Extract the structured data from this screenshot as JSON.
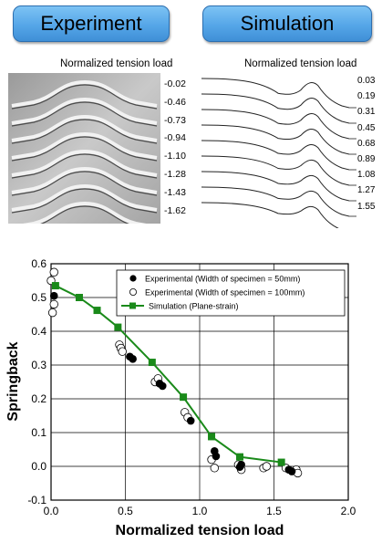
{
  "header": {
    "experiment_label": "Experiment",
    "simulation_label": "Simulation"
  },
  "experiment_panel": {
    "caption": "Normalized tension load",
    "load_labels": [
      "0.02",
      "0.46",
      "0.73",
      "0.94",
      "1.10",
      "1.28",
      "1.43",
      "1.62"
    ]
  },
  "simulation_panel": {
    "caption": "Normalized tension load",
    "load_labels": [
      "0.03",
      "0.19",
      "0.31",
      "0.45",
      "0.68",
      "0.89",
      "1.08",
      "1.27",
      "1.55"
    ]
  },
  "colors": {
    "header_fill": "#55a6e8",
    "simulation_series": "#1a8a1a",
    "photo_background": "#b8b8b8"
  },
  "chart_data": {
    "type": "scatter",
    "xlabel": "Normalized tension load",
    "ylabel": "Springback",
    "xlim": [
      0.0,
      2.0
    ],
    "ylim": [
      -0.1,
      0.6
    ],
    "xticks": [
      "0.0",
      "0.5",
      "1.0",
      "1.5",
      "2.0"
    ],
    "yticks": [
      "-0.1",
      "0.0",
      "0.1",
      "0.2",
      "0.3",
      "0.4",
      "0.5",
      "0.6"
    ],
    "grid": true,
    "legend_position": "top-right",
    "series": [
      {
        "name": "Experimental (Width of specimen = 50mm)",
        "marker": "filled-circle",
        "points": [
          [
            0.02,
            0.505
          ],
          [
            0.53,
            0.325
          ],
          [
            0.55,
            0.318
          ],
          [
            0.73,
            0.245
          ],
          [
            0.75,
            0.238
          ],
          [
            0.94,
            0.135
          ],
          [
            1.1,
            0.045
          ],
          [
            1.11,
            0.03
          ],
          [
            1.28,
            0.005
          ],
          [
            1.27,
            -0.002
          ],
          [
            1.6,
            -0.01
          ],
          [
            1.62,
            -0.015
          ]
        ]
      },
      {
        "name": "Experimental (Width of specimen = 100mm)",
        "marker": "open-circle",
        "points": [
          [
            0.02,
            0.575
          ],
          [
            0.0,
            0.55
          ],
          [
            0.02,
            0.48
          ],
          [
            0.01,
            0.455
          ],
          [
            0.46,
            0.36
          ],
          [
            0.47,
            0.35
          ],
          [
            0.48,
            0.34
          ],
          [
            0.7,
            0.25
          ],
          [
            0.72,
            0.26
          ],
          [
            0.9,
            0.16
          ],
          [
            0.92,
            0.145
          ],
          [
            1.08,
            0.02
          ],
          [
            1.1,
            -0.005
          ],
          [
            1.26,
            0.005
          ],
          [
            1.28,
            -0.01
          ],
          [
            1.43,
            -0.005
          ],
          [
            1.45,
            0.0
          ],
          [
            1.58,
            -0.005
          ],
          [
            1.65,
            -0.01
          ],
          [
            1.66,
            -0.02
          ]
        ]
      },
      {
        "name": "Simulation (Plane-strain)",
        "marker": "filled-square-line",
        "color": "#1a8a1a",
        "points": [
          [
            0.03,
            0.535
          ],
          [
            0.19,
            0.5
          ],
          [
            0.31,
            0.462
          ],
          [
            0.45,
            0.412
          ],
          [
            0.68,
            0.308
          ],
          [
            0.89,
            0.205
          ],
          [
            1.08,
            0.088
          ],
          [
            1.27,
            0.028
          ],
          [
            1.55,
            0.012
          ]
        ]
      }
    ]
  }
}
